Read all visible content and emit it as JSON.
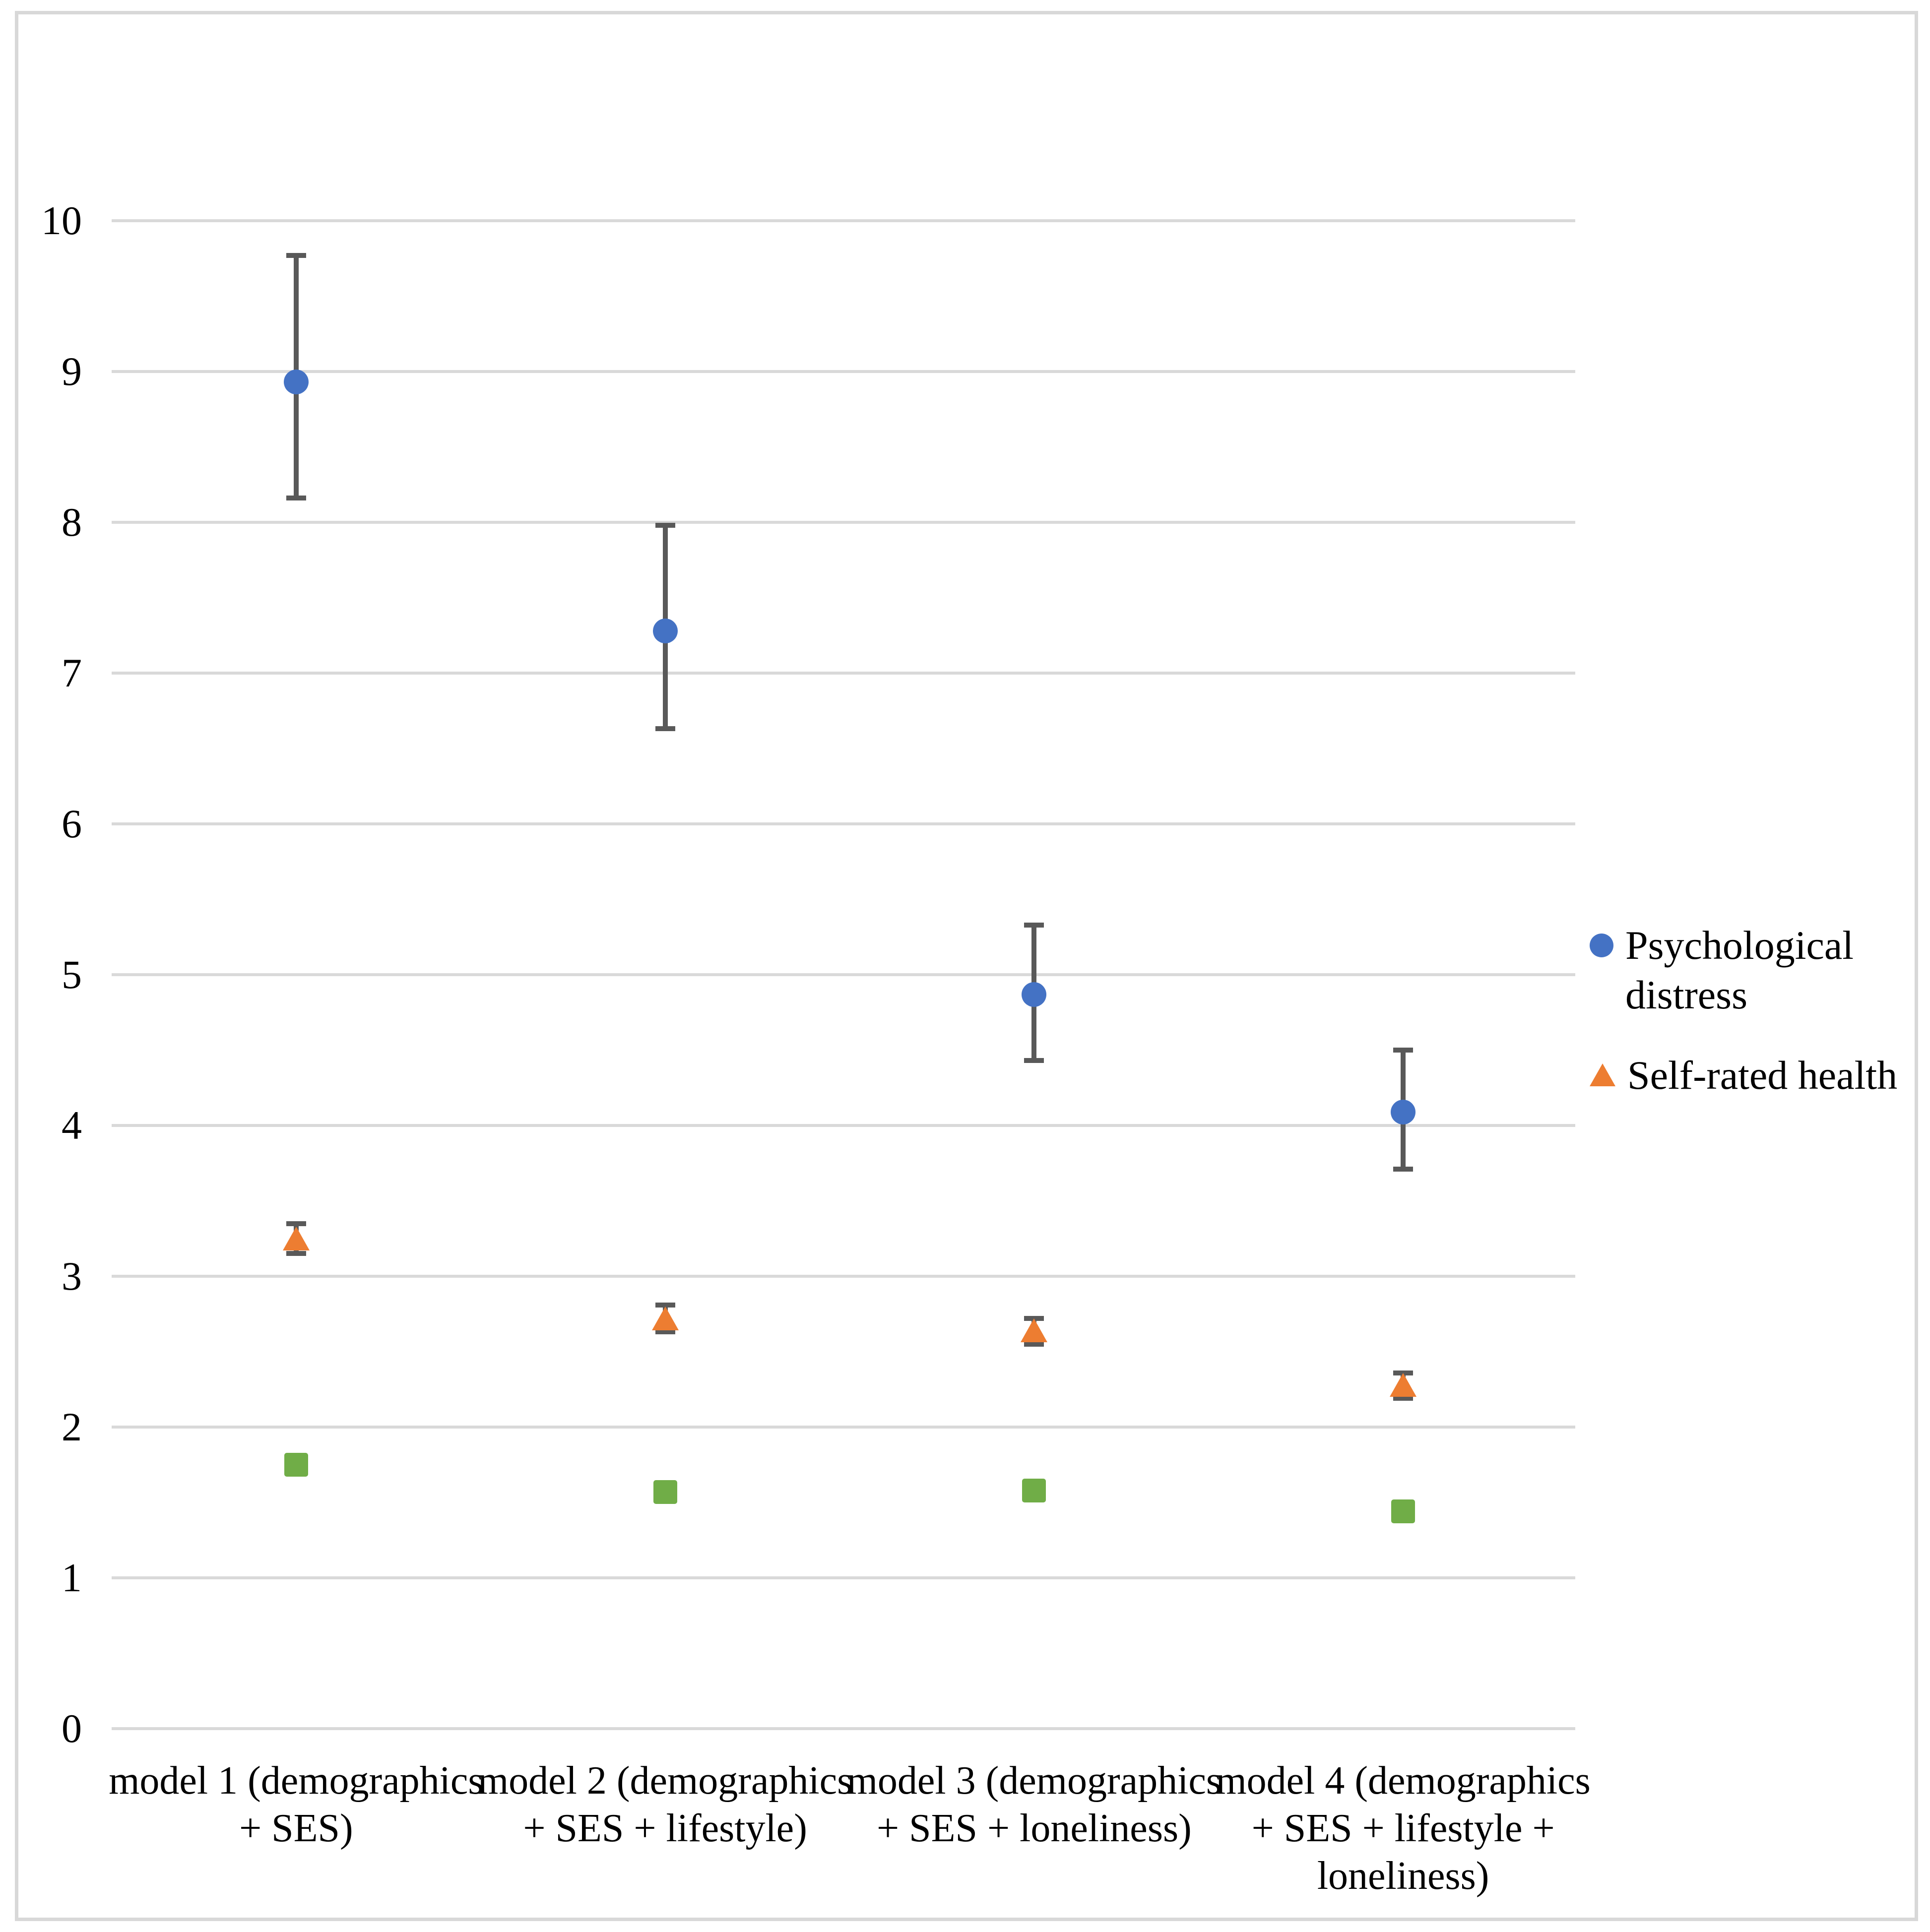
{
  "figure": {
    "background_color": "#ffffff",
    "border_color": "#d8d8d8"
  },
  "chart_data": {
    "type": "scatter",
    "title": "",
    "xlabel": "",
    "ylabel": "",
    "categories": [
      "model 1 (demographics + SES)",
      "model 2 (demographics + SES + lifestyle)",
      "model 3 (demographics + SES + loneliness)",
      "model 4 (demographics + SES + lifestyle + loneliness)"
    ],
    "series": [
      {
        "name": "Psychological distress",
        "marker": "circle",
        "color": "#4472C4",
        "show_in_legend": true,
        "values": [
          8.93,
          7.28,
          4.87,
          4.09
        ],
        "ci_low": [
          8.16,
          6.63,
          4.43,
          3.71
        ],
        "ci_high": [
          9.77,
          7.98,
          5.33,
          4.5
        ]
      },
      {
        "name": "Self-rated health",
        "marker": "triangle",
        "color": "#ED7D31",
        "show_in_legend": true,
        "values": [
          3.25,
          2.72,
          2.64,
          2.28
        ],
        "ci_low": [
          3.15,
          2.63,
          2.55,
          2.19
        ],
        "ci_high": [
          3.35,
          2.81,
          2.72,
          2.36
        ]
      },
      {
        "name": "",
        "marker": "square",
        "color": "#70AD47",
        "show_in_legend": false,
        "values": [
          1.75,
          1.57,
          1.58,
          1.44
        ],
        "ci_low": [],
        "ci_high": []
      }
    ],
    "ylim": [
      0,
      10
    ],
    "yticks": [
      0,
      1,
      2,
      3,
      4,
      5,
      6,
      7,
      8,
      9,
      10
    ],
    "grid": true,
    "gridline_color": "#D9D9D9",
    "error_bar_color": "#595959",
    "legend_position": "right"
  }
}
